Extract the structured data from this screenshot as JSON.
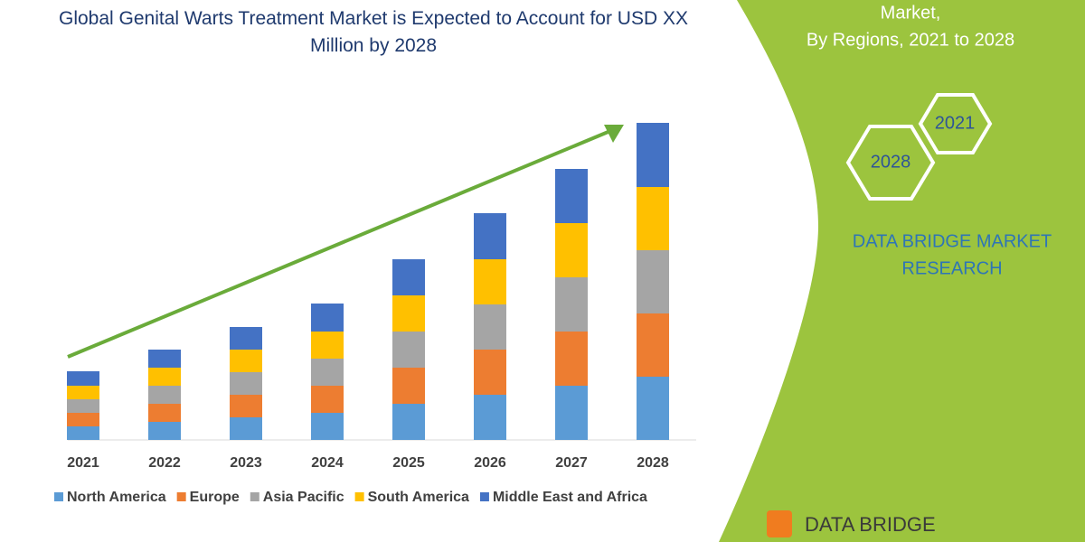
{
  "chart_data": {
    "type": "stacked-bar",
    "title": "Global Genital Warts Treatment Market is Expected to Account for USD XX Million by 2028",
    "categories": [
      "2021",
      "2022",
      "2023",
      "2024",
      "2025",
      "2026",
      "2027",
      "2028"
    ],
    "series": [
      {
        "name": "North America",
        "color": "#5b9bd5",
        "values": [
          15,
          20,
          25,
          30,
          40,
          50,
          60,
          70
        ]
      },
      {
        "name": "Europe",
        "color": "#ed7d31",
        "values": [
          15,
          20,
          25,
          30,
          40,
          50,
          60,
          70
        ]
      },
      {
        "name": "Asia Pacific",
        "color": "#a5a5a5",
        "values": [
          15,
          20,
          25,
          30,
          40,
          50,
          60,
          70
        ]
      },
      {
        "name": "South America",
        "color": "#ffc000",
        "values": [
          15,
          20,
          25,
          30,
          40,
          50,
          60,
          70
        ]
      },
      {
        "name": "Middle East and Africa",
        "color": "#4472c4",
        "values": [
          16,
          20,
          25,
          31,
          40,
          51,
          60,
          71
        ]
      }
    ],
    "ylim": [
      0,
      360
    ]
  },
  "side_panel": {
    "subtitle_lines": [
      "Market,",
      "By Regions, 2021 to 2028"
    ],
    "hexagons": [
      "2021",
      "2028"
    ],
    "brand_lines": [
      "DATA BRIDGE MARKET",
      "RESEARCH"
    ],
    "logo": "DATA BRIDGE"
  }
}
